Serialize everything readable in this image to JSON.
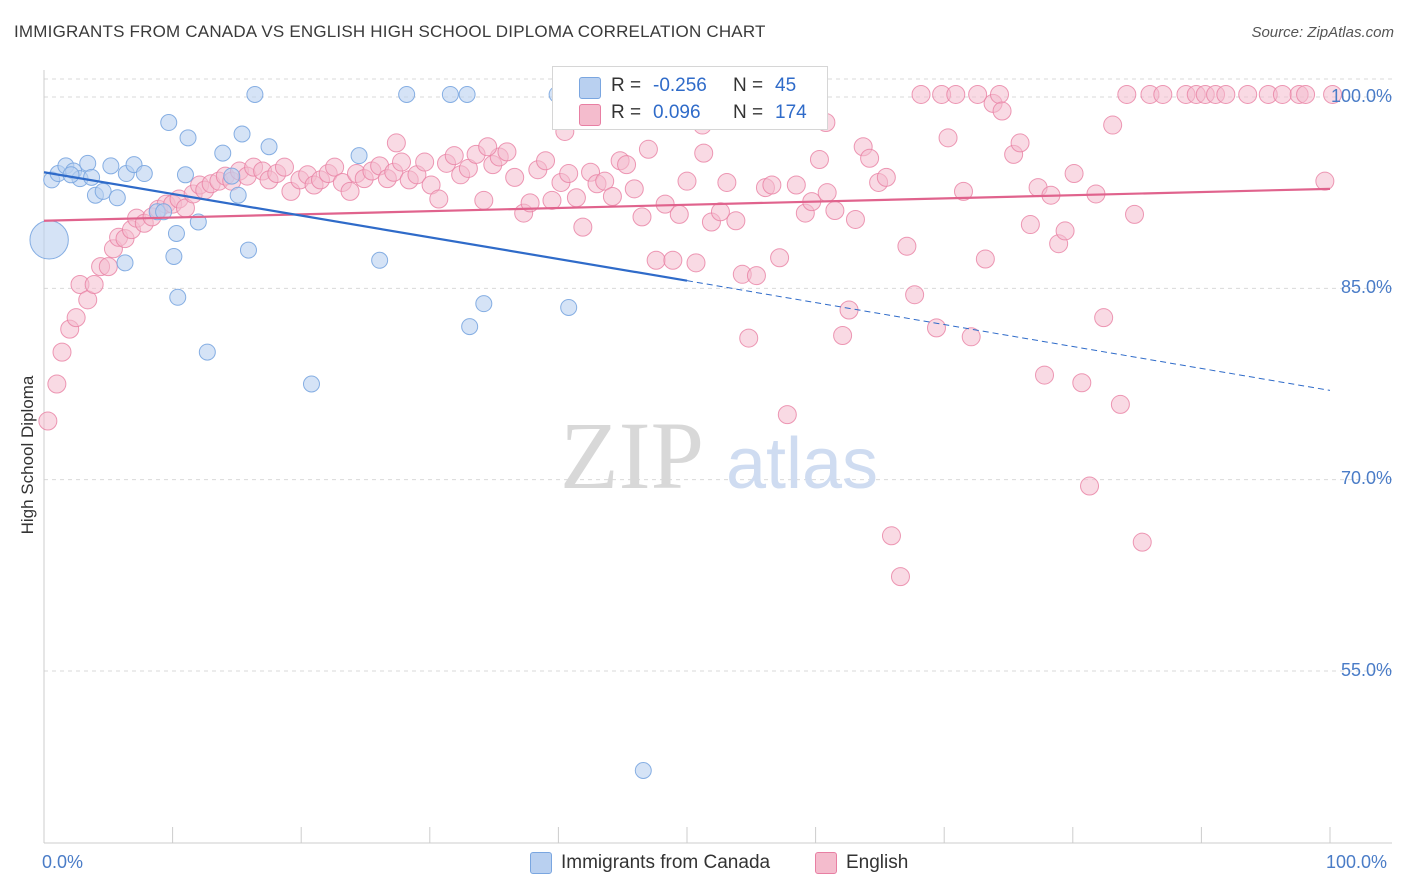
{
  "title": "IMMIGRANTS FROM CANADA VS ENGLISH HIGH SCHOOL DIPLOMA CORRELATION CHART",
  "source": "Source: ZipAtlas.com",
  "watermark": {
    "zip": "ZIP",
    "atlas": "atlas"
  },
  "colors": {
    "blue": "#7aa6e0",
    "blue_fill": "#b9d0f0",
    "pink": "#e87fa3",
    "pink_fill": "#f4bccd",
    "blue_line": "#2f6bc9",
    "pink_line": "#e0638d",
    "axis_text": "#4a7cc7"
  },
  "legend": {
    "rows": [
      {
        "r_label": "R =",
        "r_value": "-0.256",
        "n_label": "N =",
        "n_value": "45"
      },
      {
        "r_label": "R =",
        "r_value": "0.096",
        "n_label": "N =",
        "n_value": "174"
      }
    ]
  },
  "bottom_legend": {
    "blue_label": "Immigrants from Canada",
    "pink_label": "English"
  },
  "chart_data": {
    "type": "scatter",
    "title": "IMMIGRANTS FROM CANADA VS ENGLISH HIGH SCHOOL DIPLOMA CORRELATION CHART",
    "xlabel": "",
    "ylabel": "High School Diploma",
    "xlim": [
      0,
      100
    ],
    "ylim": [
      40,
      102.5
    ],
    "x_tick_labels": [
      "0.0%",
      "100.0%"
    ],
    "y_ticks": [
      55,
      70,
      85,
      100
    ],
    "y_tick_labels": [
      "55.0%",
      "70.0%",
      "85.0%",
      "100.0%"
    ],
    "grid": true,
    "series": [
      {
        "name": "Immigrants from Canada",
        "r": -0.256,
        "n": 45,
        "trend": {
          "x0": 0,
          "y0": 94.1,
          "x1": 50,
          "y1": 85.6,
          "dash_to_x": 100,
          "dash_to_y": 77.0
        },
        "points": [
          [
            0.6,
            93.5
          ],
          [
            1.1,
            94
          ],
          [
            1.7,
            94.6
          ],
          [
            2.3,
            94.2
          ],
          [
            2.8,
            93.6
          ],
          [
            3.4,
            94.8
          ],
          [
            4,
            92.3
          ],
          [
            4.6,
            92.6
          ],
          [
            5.2,
            94.6
          ],
          [
            5.7,
            92.1
          ],
          [
            6.3,
            87
          ],
          [
            6.4,
            94
          ],
          [
            7,
            94.7
          ],
          [
            7.8,
            94
          ],
          [
            8.8,
            91
          ],
          [
            9.3,
            91
          ],
          [
            10.1,
            87.5
          ],
          [
            9.7,
            98
          ],
          [
            10.3,
            89.3
          ],
          [
            10.4,
            84.3
          ],
          [
            11,
            93.9
          ],
          [
            11.2,
            96.8
          ],
          [
            12,
            90.2
          ],
          [
            12.7,
            80
          ],
          [
            13.9,
            95.6
          ],
          [
            14.6,
            93.8
          ],
          [
            15.1,
            92.3
          ],
          [
            15.4,
            97.1
          ],
          [
            15.9,
            88
          ],
          [
            16.4,
            100.2
          ],
          [
            17.5,
            96.1
          ],
          [
            20.8,
            77.5
          ],
          [
            24.5,
            95.4
          ],
          [
            26.1,
            87.2
          ],
          [
            28.2,
            100.2
          ],
          [
            31.6,
            100.2
          ],
          [
            32.9,
            100.2
          ],
          [
            33.1,
            82
          ],
          [
            34.2,
            83.8
          ],
          [
            39.9,
            100.2
          ],
          [
            40.8,
            83.5
          ],
          [
            46.6,
            47.2
          ],
          [
            0.4,
            88.8
          ],
          [
            2.1,
            93.9
          ],
          [
            3.7,
            93.7
          ]
        ],
        "sizes": [
          1,
          1,
          1,
          1,
          1,
          1,
          1,
          1,
          1,
          1,
          1,
          1,
          1,
          1,
          1,
          1,
          1,
          1,
          1,
          1,
          1,
          1,
          1,
          1,
          1,
          1,
          1,
          1,
          1,
          1,
          1,
          1,
          1,
          1,
          1,
          1,
          1,
          1,
          1,
          1,
          1,
          1,
          2.4,
          1,
          1
        ]
      },
      {
        "name": "English",
        "r": 0.096,
        "n": 174,
        "trend": {
          "x0": 0,
          "y0": 90.3,
          "x1": 100,
          "y1": 92.8
        },
        "points": [
          [
            0.3,
            74.6
          ],
          [
            1,
            77.5
          ],
          [
            1.4,
            80
          ],
          [
            2,
            81.8
          ],
          [
            2.5,
            82.7
          ],
          [
            2.8,
            85.3
          ],
          [
            3.4,
            84.1
          ],
          [
            3.9,
            85.3
          ],
          [
            4.4,
            86.7
          ],
          [
            5,
            86.7
          ],
          [
            5.4,
            88.1
          ],
          [
            5.8,
            89
          ],
          [
            6.3,
            88.9
          ],
          [
            6.8,
            89.6
          ],
          [
            7.2,
            90.5
          ],
          [
            7.8,
            90.1
          ],
          [
            8.4,
            90.6
          ],
          [
            8.9,
            91.2
          ],
          [
            9.5,
            91.6
          ],
          [
            10,
            91.6
          ],
          [
            10.5,
            92
          ],
          [
            11,
            91.3
          ],
          [
            11.6,
            92.4
          ],
          [
            12.1,
            93.1
          ],
          [
            12.5,
            92.7
          ],
          [
            13,
            93.2
          ],
          [
            13.6,
            93.4
          ],
          [
            14.1,
            93.8
          ],
          [
            14.6,
            93.4
          ],
          [
            15.2,
            94.2
          ],
          [
            15.8,
            93.8
          ],
          [
            16.3,
            94.5
          ],
          [
            17,
            94.2
          ],
          [
            17.5,
            93.5
          ],
          [
            18.1,
            94
          ],
          [
            18.7,
            94.5
          ],
          [
            19.2,
            92.6
          ],
          [
            19.9,
            93.5
          ],
          [
            20.5,
            93.9
          ],
          [
            21,
            93.1
          ],
          [
            21.5,
            93.5
          ],
          [
            22.1,
            94
          ],
          [
            22.6,
            94.5
          ],
          [
            23.2,
            93.3
          ],
          [
            23.8,
            92.6
          ],
          [
            24.3,
            94
          ],
          [
            24.9,
            93.6
          ],
          [
            25.5,
            94.2
          ],
          [
            26.1,
            94.6
          ],
          [
            26.7,
            93.6
          ],
          [
            27.2,
            94.1
          ],
          [
            27.8,
            94.9
          ],
          [
            28.4,
            93.5
          ],
          [
            29,
            93.9
          ],
          [
            29.6,
            94.9
          ],
          [
            30.1,
            93.1
          ],
          [
            30.7,
            92
          ],
          [
            31.3,
            94.8
          ],
          [
            31.9,
            95.4
          ],
          [
            32.4,
            93.9
          ],
          [
            33,
            94.4
          ],
          [
            33.6,
            95.5
          ],
          [
            34.2,
            91.9
          ],
          [
            34.9,
            94.7
          ],
          [
            35.4,
            95.3
          ],
          [
            36,
            95.7
          ],
          [
            36.6,
            93.7
          ],
          [
            37.3,
            90.9
          ],
          [
            37.8,
            91.7
          ],
          [
            38.4,
            94.3
          ],
          [
            39,
            95
          ],
          [
            39.5,
            91.9
          ],
          [
            40.2,
            93.3
          ],
          [
            40.8,
            94
          ],
          [
            41.4,
            92.1
          ],
          [
            41.9,
            89.8
          ],
          [
            42.5,
            94.1
          ],
          [
            43,
            93.2
          ],
          [
            43.6,
            93.4
          ],
          [
            44.2,
            92.2
          ],
          [
            44.8,
            95
          ],
          [
            45.3,
            94.7
          ],
          [
            45.9,
            92.8
          ],
          [
            46.5,
            90.6
          ],
          [
            47,
            95.9
          ],
          [
            47.6,
            87.2
          ],
          [
            48.3,
            91.6
          ],
          [
            48.9,
            87.2
          ],
          [
            49.4,
            90.8
          ],
          [
            50,
            93.4
          ],
          [
            50.7,
            87
          ],
          [
            51.3,
            95.6
          ],
          [
            51.9,
            90.2
          ],
          [
            52.6,
            91
          ],
          [
            53.1,
            93.3
          ],
          [
            53.8,
            90.3
          ],
          [
            54.3,
            86.1
          ],
          [
            54.8,
            81.1
          ],
          [
            55.4,
            86
          ],
          [
            56.1,
            92.9
          ],
          [
            56.6,
            93.1
          ],
          [
            57.2,
            87.4
          ],
          [
            57.8,
            75.1
          ],
          [
            58.5,
            93.1
          ],
          [
            59.2,
            90.9
          ],
          [
            59.7,
            91.8
          ],
          [
            60.3,
            95.1
          ],
          [
            60.9,
            92.5
          ],
          [
            61.5,
            91.1
          ],
          [
            62.1,
            81.3
          ],
          [
            62.6,
            83.3
          ],
          [
            63.1,
            90.4
          ],
          [
            63.7,
            96.1
          ],
          [
            64.2,
            95.2
          ],
          [
            64.9,
            93.3
          ],
          [
            65.5,
            93.7
          ],
          [
            65.9,
            65.6
          ],
          [
            66.6,
            62.4
          ],
          [
            67.1,
            88.3
          ],
          [
            67.7,
            84.5
          ],
          [
            68.2,
            100.2
          ],
          [
            69.4,
            81.9
          ],
          [
            69.8,
            100.2
          ],
          [
            70.3,
            96.8
          ],
          [
            70.9,
            100.2
          ],
          [
            71.5,
            92.6
          ],
          [
            72.1,
            81.2
          ],
          [
            72.6,
            100.2
          ],
          [
            73.2,
            87.3
          ],
          [
            73.8,
            99.5
          ],
          [
            74.3,
            100.2
          ],
          [
            74.5,
            98.9
          ],
          [
            75.4,
            95.5
          ],
          [
            75.9,
            96.4
          ],
          [
            76.7,
            90
          ],
          [
            77.3,
            92.9
          ],
          [
            77.8,
            78.2
          ],
          [
            78.3,
            92.3
          ],
          [
            78.9,
            88.5
          ],
          [
            79.4,
            89.5
          ],
          [
            80.1,
            94
          ],
          [
            80.7,
            77.6
          ],
          [
            81.3,
            69.5
          ],
          [
            81.8,
            92.4
          ],
          [
            82.4,
            82.7
          ],
          [
            83.1,
            97.8
          ],
          [
            83.7,
            75.9
          ],
          [
            84.2,
            100.2
          ],
          [
            84.8,
            90.8
          ],
          [
            85.4,
            65.1
          ],
          [
            86,
            100.2
          ],
          [
            87,
            100.2
          ],
          [
            88.8,
            100.2
          ],
          [
            89.6,
            100.2
          ],
          [
            90.3,
            100.2
          ],
          [
            91.1,
            100.2
          ],
          [
            91.9,
            100.2
          ],
          [
            93.6,
            100.2
          ],
          [
            95.2,
            100.2
          ],
          [
            96.3,
            100.2
          ],
          [
            97.6,
            100.2
          ],
          [
            98.1,
            100.2
          ],
          [
            100.2,
            100.2
          ],
          [
            99.6,
            93.4
          ],
          [
            40.5,
            97.3
          ],
          [
            47,
            99.3
          ],
          [
            51.2,
            97.8
          ],
          [
            60.8,
            98
          ],
          [
            27.4,
            96.4
          ],
          [
            34.5,
            96.1
          ]
        ]
      }
    ]
  }
}
